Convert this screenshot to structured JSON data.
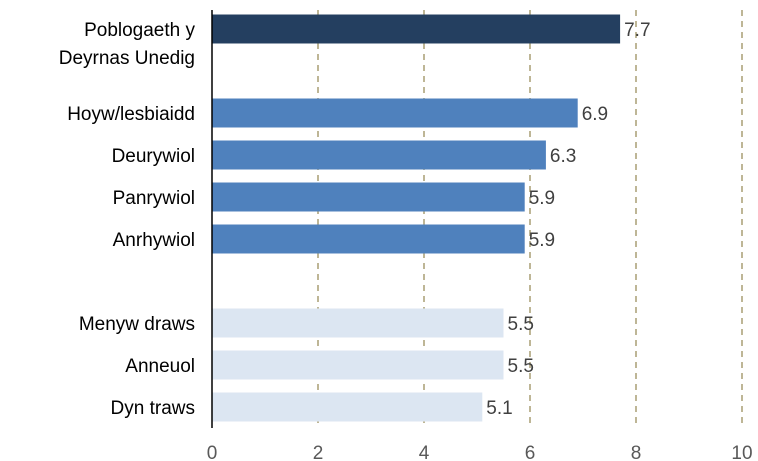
{
  "chart_data": {
    "type": "bar",
    "orientation": "horizontal",
    "title": "",
    "xlabel": "",
    "ylabel": "",
    "xlim": [
      0,
      10
    ],
    "xticks": [
      0,
      2,
      4,
      6,
      8,
      10
    ],
    "grid": "vertical-dashed",
    "legend": "none",
    "groups": [
      {
        "color": "#243f60",
        "bars": [
          {
            "label": [
              "Poblogaeth y",
              "Deyrnas Unedig"
            ],
            "value": 7.7,
            "value_label": "7.7"
          }
        ]
      },
      {
        "color": "#4f81bd",
        "bars": [
          {
            "label": [
              "Hoyw/lesbiaidd"
            ],
            "value": 6.9,
            "value_label": "6.9"
          },
          {
            "label": [
              "Deurywiol"
            ],
            "value": 6.3,
            "value_label": "6.3"
          },
          {
            "label": [
              "Panrywiol"
            ],
            "value": 5.9,
            "value_label": "5.9"
          },
          {
            "label": [
              "Anrhywiol"
            ],
            "value": 5.9,
            "value_label": "5.9"
          }
        ]
      },
      {
        "color": "#dce6f2",
        "bars": [
          {
            "label": [
              "Menyw draws"
            ],
            "value": 5.5,
            "value_label": "5.5"
          },
          {
            "label": [
              "Anneuol"
            ],
            "value": 5.5,
            "value_label": "5.5"
          },
          {
            "label": [
              "Dyn traws"
            ],
            "value": 5.1,
            "value_label": "5.1"
          }
        ]
      }
    ],
    "colors": {
      "grid": "#9c8f5e",
      "axis": "#000000",
      "tick_text": "#595959",
      "value_text": "#404040"
    }
  }
}
